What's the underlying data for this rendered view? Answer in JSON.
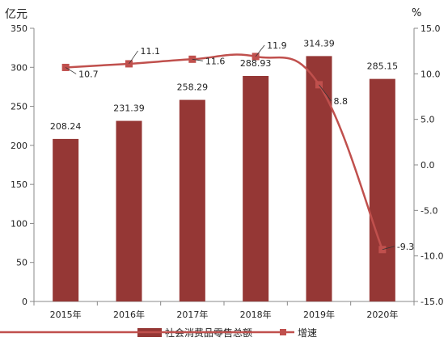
{
  "chart_data": {
    "type": "bar",
    "categories": [
      "2015年",
      "2016年",
      "2017年",
      "2018年",
      "2019年",
      "2020年"
    ],
    "series": [
      {
        "name": "社会消费品零售总额",
        "type": "bar",
        "axis": "left",
        "color": "#953735",
        "values": [
          208.24,
          231.39,
          258.29,
          288.93,
          314.39,
          285.15
        ],
        "labels": [
          "208.24",
          "231.39",
          "258.29",
          "288.93",
          "314.39",
          "285.15"
        ]
      },
      {
        "name": "增速",
        "type": "line",
        "axis": "right",
        "color": "#C0504D",
        "marker": "square",
        "values": [
          10.7,
          11.1,
          11.6,
          11.9,
          8.8,
          -9.3
        ],
        "labels": [
          "10.7",
          "11.1",
          "11.6",
          "11.9",
          "8.8",
          "-9.3"
        ]
      }
    ],
    "y_left": {
      "unit_label": "亿元",
      "ylim": [
        0,
        350
      ],
      "ticks": [
        "0",
        "50",
        "100",
        "150",
        "200",
        "250",
        "300",
        "350"
      ],
      "tick_values": [
        0,
        50,
        100,
        150,
        200,
        250,
        300,
        350
      ]
    },
    "y_right": {
      "unit_label": "%",
      "ylim": [
        -15,
        15
      ],
      "ticks": [
        "-15.0",
        "-10.0",
        "-5.0",
        "0.0",
        "5.0",
        "10.0",
        "15.0"
      ],
      "tick_values": [
        -15,
        -10,
        -5,
        0,
        5,
        10,
        15
      ]
    },
    "grid": false,
    "legend_position": "bottom"
  }
}
